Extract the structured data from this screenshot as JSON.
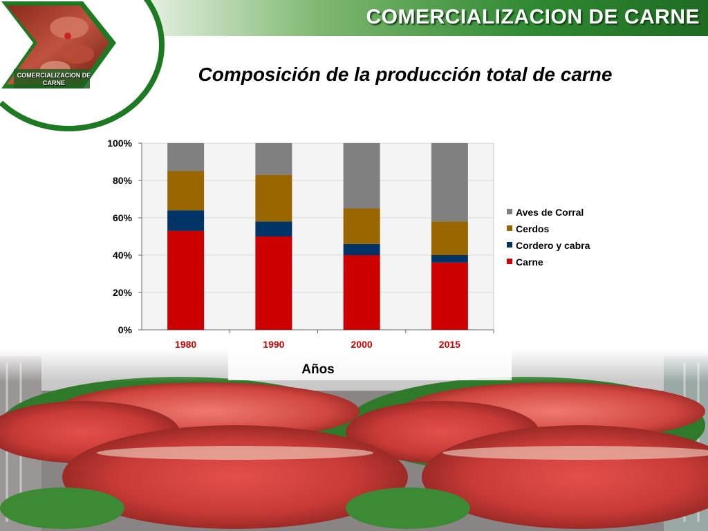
{
  "header": {
    "title": "COMERCIALIZACION DE CARNE"
  },
  "logo": {
    "text": "COMERCIALIZACION DE CARNE"
  },
  "slide": {
    "subtitle": "Composición de la producción total de carne"
  },
  "colors": {
    "accent": "#2f8a32",
    "aves": "#808080",
    "cerdos": "#996600",
    "cordero": "#003366",
    "carne": "#cc0000",
    "tick_label": "#cc0000"
  },
  "chart_data": {
    "type": "bar",
    "stacked": true,
    "categories": [
      "1980",
      "1990",
      "2000",
      "2015"
    ],
    "series": [
      {
        "name": "Carne",
        "color": "#cc0000",
        "values": [
          53,
          50,
          40,
          36
        ]
      },
      {
        "name": "Cordero y cabra",
        "color": "#003366",
        "values": [
          11,
          8,
          6,
          4
        ]
      },
      {
        "name": "Cerdos",
        "color": "#996600",
        "values": [
          21,
          25,
          19,
          18
        ]
      },
      {
        "name": "Aves de Corral",
        "color": "#808080",
        "values": [
          15,
          17,
          35,
          42
        ]
      }
    ],
    "legend_order": [
      "Aves de Corral",
      "Cerdos",
      "Cordero y cabra",
      "Carne"
    ],
    "legend_position": "right",
    "xlabel": "Años",
    "ylabel": "",
    "ylim": [
      0,
      100
    ],
    "yticks": [
      "0%",
      "20%",
      "40%",
      "60%",
      "80%",
      "100%"
    ],
    "grid": true
  }
}
